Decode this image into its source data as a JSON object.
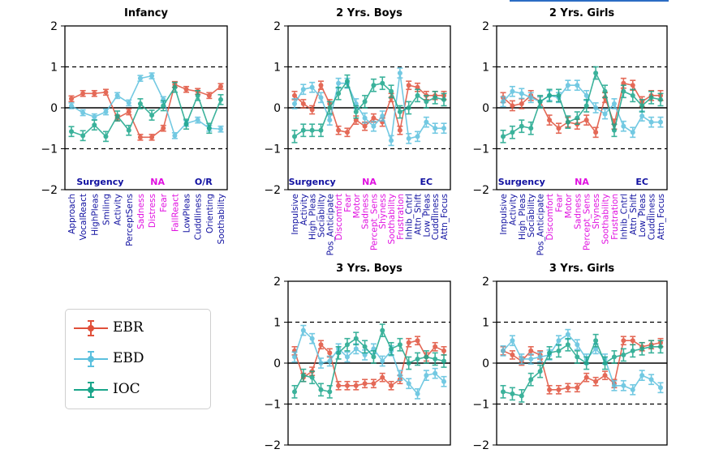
{
  "colors": {
    "EBR": "#e0503a",
    "EBD": "#5bc0de",
    "IOC": "#1aa58a",
    "blue_group": "#1010a0",
    "magenta_group": "#e010e0",
    "dashed": "#000000"
  },
  "legend": [
    {
      "key": "EBR",
      "label": "EBR"
    },
    {
      "key": "EBD",
      "label": "EBD"
    },
    {
      "key": "IOC",
      "label": "IOC"
    }
  ],
  "chart_data": [
    {
      "type": "line",
      "title": "Infancy",
      "ylim": [
        -2,
        2
      ],
      "yticks": [
        -2,
        -1,
        0,
        1,
        2
      ],
      "dashed_lines": [
        1,
        -1
      ],
      "categories": [
        "Approach",
        "VocalReact",
        "HighPleas",
        "Smiling",
        "Activity",
        "PerceptSens",
        "Sadness",
        "Distress",
        "Fear",
        "FallReact",
        "LowPleas",
        "Cuddliness",
        "Orienting",
        "Soothability"
      ],
      "category_groups": [
        "blue",
        "blue",
        "blue",
        "blue",
        "blue",
        "blue",
        "magenta",
        "magenta",
        "magenta",
        "magenta",
        "blue",
        "blue",
        "blue",
        "blue"
      ],
      "group_labels": [
        {
          "text": "Surgency",
          "color": "blue",
          "at": 2.5
        },
        {
          "text": "NA",
          "color": "magenta",
          "at": 7.5
        },
        {
          "text": "O/R",
          "color": "blue",
          "at": 11.5
        }
      ],
      "series": [
        {
          "name": "EBR",
          "values": [
            0.22,
            0.35,
            0.35,
            0.38,
            -0.25,
            -0.1,
            -0.72,
            -0.72,
            -0.5,
            0.57,
            0.45,
            0.4,
            0.3,
            0.52
          ],
          "err": 0.07
        },
        {
          "name": "EBD",
          "values": [
            0.05,
            -0.12,
            -0.22,
            -0.1,
            0.3,
            0.12,
            0.72,
            0.78,
            0.2,
            -0.68,
            -0.38,
            -0.3,
            -0.5,
            -0.52
          ],
          "err": 0.07
        },
        {
          "name": "IOC",
          "values": [
            -0.58,
            -0.68,
            -0.42,
            -0.7,
            -0.2,
            -0.55,
            0.1,
            -0.18,
            0.05,
            0.5,
            -0.4,
            0.3,
            -0.5,
            0.2
          ],
          "err": 0.12
        }
      ]
    },
    {
      "type": "line",
      "title": "2 Yrs. Boys",
      "ylim": [
        -2,
        2
      ],
      "yticks": [
        -2,
        -1,
        0,
        1,
        2
      ],
      "dashed_lines": [
        1,
        -1
      ],
      "categories": [
        "Impulsive",
        "Activity",
        "High_Pleas",
        "Sociability",
        "Pos_Anticipate",
        "Discomfort",
        "Fear",
        "Motor",
        "Sadness",
        "Percept_Sens",
        "Shyness",
        "Soothability",
        "Frustration",
        "Inhib_Cntrl",
        "Attn_Shift",
        "Low_Pleas",
        "Cuddliness",
        "Attn_Focus"
      ],
      "category_groups": [
        "blue",
        "blue",
        "blue",
        "blue",
        "blue",
        "magenta",
        "magenta",
        "magenta",
        "magenta",
        "magenta",
        "magenta",
        "magenta",
        "magenta",
        "blue",
        "blue",
        "blue",
        "blue",
        "blue"
      ],
      "group_labels": [
        {
          "text": "Surgency",
          "color": "blue",
          "at": 2
        },
        {
          "text": "NA",
          "color": "magenta",
          "at": 8.5
        },
        {
          "text": "EC",
          "color": "blue",
          "at": 15
        }
      ],
      "series": [
        {
          "name": "EBR",
          "values": [
            0.3,
            0.1,
            -0.05,
            0.55,
            0.1,
            -0.55,
            -0.6,
            -0.3,
            -0.45,
            -0.25,
            -0.35,
            0.25,
            -0.55,
            0.55,
            0.5,
            0.3,
            0.3,
            0.3
          ],
          "err": 0.1
        },
        {
          "name": "EBD",
          "values": [
            0.1,
            0.45,
            0.5,
            0.25,
            -0.3,
            0.6,
            0.6,
            0.1,
            -0.25,
            -0.45,
            -0.2,
            -0.8,
            0.85,
            -0.75,
            -0.7,
            -0.35,
            -0.5,
            -0.5
          ],
          "err": 0.12
        },
        {
          "name": "IOC",
          "values": [
            -0.7,
            -0.55,
            -0.55,
            -0.55,
            0.0,
            0.35,
            0.65,
            -0.1,
            0.15,
            0.55,
            0.6,
            0.4,
            -0.1,
            0.0,
            0.3,
            0.15,
            0.25,
            0.2
          ],
          "err": 0.15
        }
      ]
    },
    {
      "type": "line",
      "title": "2 Yrs. Girls",
      "ylim": [
        -2,
        2
      ],
      "yticks": [
        -2,
        -1,
        0,
        1,
        2
      ],
      "dashed_lines": [
        1,
        -1
      ],
      "categories": [
        "Impulsive",
        "Activity",
        "High_Pleas",
        "Sociability",
        "Pos_Anticipate",
        "Discomfort",
        "Fear",
        "Motor",
        "Sadness",
        "Percept_Sens",
        "Shyness",
        "Soothability",
        "Frustration",
        "Inhib_Cntrl",
        "Attn_Shift",
        "Low_Pleas",
        "Cuddliness",
        "Attn_Focus"
      ],
      "category_groups": [
        "blue",
        "blue",
        "blue",
        "blue",
        "blue",
        "magenta",
        "magenta",
        "magenta",
        "magenta",
        "magenta",
        "magenta",
        "magenta",
        "magenta",
        "blue",
        "blue",
        "blue",
        "blue",
        "blue"
      ],
      "group_labels": [
        {
          "text": "Surgency",
          "color": "blue",
          "at": 2
        },
        {
          "text": "NA",
          "color": "magenta",
          "at": 8.5
        },
        {
          "text": "EC",
          "color": "blue",
          "at": 15
        }
      ],
      "series": [
        {
          "name": "EBR",
          "values": [
            0.25,
            0.05,
            0.1,
            0.3,
            0.15,
            -0.3,
            -0.5,
            -0.35,
            -0.4,
            -0.3,
            -0.6,
            0.25,
            -0.4,
            0.6,
            0.55,
            0.15,
            0.3,
            0.3
          ],
          "err": 0.12
        },
        {
          "name": "EBD",
          "values": [
            0.15,
            0.4,
            0.35,
            0.25,
            0.15,
            0.3,
            0.25,
            0.55,
            0.55,
            0.3,
            0.0,
            -0.15,
            0.1,
            -0.45,
            -0.6,
            -0.2,
            -0.35,
            -0.35
          ],
          "err": 0.12
        },
        {
          "name": "IOC",
          "values": [
            -0.7,
            -0.6,
            -0.45,
            -0.5,
            0.15,
            0.3,
            0.3,
            -0.35,
            -0.25,
            0.05,
            0.85,
            0.4,
            -0.55,
            0.4,
            0.3,
            0.05,
            0.25,
            0.2
          ],
          "err": 0.15
        }
      ]
    },
    {
      "type": "line",
      "title": "3 Yrs. Boys",
      "ylim": [
        -2,
        2
      ],
      "yticks": [
        -2,
        -1,
        0,
        1,
        2
      ],
      "dashed_lines": [
        1,
        -1
      ],
      "categories": [
        "Impulsive",
        "Activity",
        "High_Pleas",
        "Sociability",
        "Pos_Anticipate",
        "Discomfort",
        "Fear",
        "Motor",
        "Sadness",
        "Percept_Sens",
        "Shyness",
        "Soothability",
        "Frustration",
        "Inhib_Cntrl",
        "Attn_Shift",
        "Low_Pleas",
        "Cuddliness",
        "Attn_Focus"
      ],
      "series": [
        {
          "name": "EBR",
          "values": [
            0.3,
            -0.35,
            -0.2,
            0.45,
            0.25,
            -0.55,
            -0.55,
            -0.55,
            -0.5,
            -0.5,
            -0.35,
            -0.55,
            -0.4,
            0.5,
            0.55,
            0.15,
            0.4,
            0.3
          ],
          "err": 0.1
        },
        {
          "name": "EBD",
          "values": [
            0.15,
            0.8,
            0.6,
            0.0,
            0.05,
            0.35,
            0.15,
            0.35,
            0.2,
            0.35,
            0.05,
            0.3,
            -0.3,
            -0.5,
            -0.75,
            -0.3,
            -0.25,
            -0.45
          ],
          "err": 0.12
        },
        {
          "name": "IOC",
          "values": [
            -0.7,
            -0.3,
            -0.35,
            -0.65,
            -0.7,
            0.25,
            0.45,
            0.6,
            0.4,
            0.15,
            0.8,
            0.35,
            0.45,
            0.0,
            0.1,
            0.15,
            0.1,
            0.05
          ],
          "err": 0.15
        }
      ]
    },
    {
      "type": "line",
      "title": "3 Yrs. Girls",
      "ylim": [
        -2,
        2
      ],
      "yticks": [
        -2,
        -1,
        0,
        1,
        2
      ],
      "dashed_lines": [
        1,
        -1
      ],
      "categories": [
        "Impulsive",
        "Activity",
        "High_Pleas",
        "Sociability",
        "Pos_Anticipate",
        "Discomfort",
        "Fear",
        "Motor",
        "Sadness",
        "Percept_Sens",
        "Shyness",
        "Soothability",
        "Frustration",
        "Inhib_Cntrl",
        "Attn_Shift",
        "Low_Pleas",
        "Cuddliness",
        "Attn_Focus"
      ],
      "series": [
        {
          "name": "EBR",
          "values": [
            0.3,
            0.2,
            0.05,
            0.3,
            0.2,
            -0.65,
            -0.65,
            -0.6,
            -0.6,
            -0.35,
            -0.45,
            -0.3,
            -0.5,
            0.55,
            0.55,
            0.4,
            0.45,
            0.5
          ],
          "err": 0.1
        },
        {
          "name": "EBD",
          "values": [
            0.3,
            0.55,
            0.1,
            0.1,
            0.15,
            0.2,
            0.55,
            0.7,
            0.45,
            0.1,
            0.35,
            0.1,
            -0.55,
            -0.55,
            -0.65,
            -0.3,
            -0.4,
            -0.6
          ],
          "err": 0.12
        },
        {
          "name": "IOC",
          "values": [
            -0.7,
            -0.75,
            -0.8,
            -0.4,
            -0.2,
            0.25,
            0.3,
            0.45,
            0.15,
            0.0,
            0.55,
            0.0,
            0.15,
            0.2,
            0.3,
            0.35,
            0.4,
            0.4
          ],
          "err": 0.15
        }
      ]
    }
  ]
}
